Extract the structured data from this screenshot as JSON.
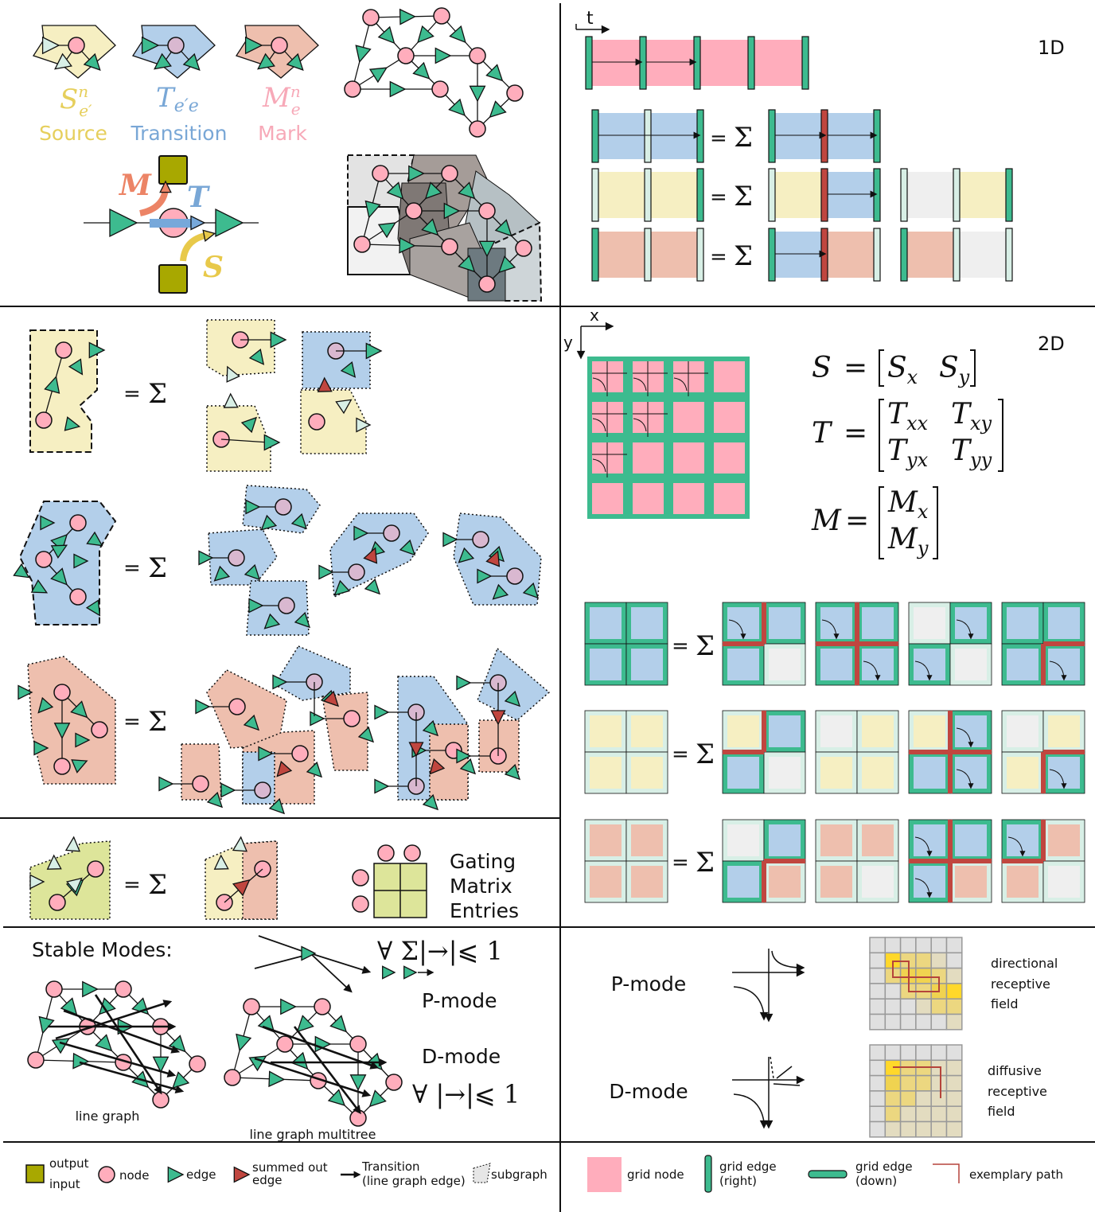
{
  "colors": {
    "node": "#ffadbc",
    "edge": "#3dbb8f",
    "source": "#f6efc2",
    "transition": "#b3cfea",
    "mark": "#eebfae",
    "io": "#a8a800",
    "summed_out": "#c0463f",
    "gating": "#dde59a",
    "path": "#b5443b",
    "source_text": "#e6cf5c",
    "transition_text": "#79a7d6",
    "mark_text": "#f7a9b8",
    "M_arrow": "#ec8466",
    "S_arrow": "#e8c94a"
  },
  "top_left": {
    "source": {
      "base": "S",
      "sup": "n",
      "sub": "e′",
      "label": "Source"
    },
    "transition": {
      "base": "T",
      "sub": "e′e",
      "label": "Transition"
    },
    "mark": {
      "base": "M",
      "sup": "n",
      "sub": "e",
      "label": "Mark"
    },
    "flow": {
      "M": "M",
      "T": "T",
      "S": "S"
    }
  },
  "one_d": {
    "title": "1D",
    "axis": "t",
    "eq": "=",
    "sum": "Σ"
  },
  "two_d": {
    "title": "2D",
    "axis_x": "x",
    "axis_y": "y",
    "eq": "=",
    "sum": "Σ",
    "S": {
      "lhs": "S",
      "a": "S",
      "a_sub": "x",
      "b": "S",
      "b_sub": "y"
    },
    "T": {
      "lhs": "T",
      "a": "T",
      "a_sub": "xx",
      "b": "T",
      "b_sub": "xy",
      "c": "T",
      "c_sub": "yx",
      "d": "T",
      "d_sub": "yy"
    },
    "M": {
      "lhs": "M",
      "a": "M",
      "a_sub": "x",
      "b": "M",
      "b_sub": "y"
    }
  },
  "left_rows": {
    "eq": "=",
    "sum": "Σ"
  },
  "gating": {
    "line1": "Gating",
    "line2": "Matrix",
    "line3": "Entries"
  },
  "stable": {
    "title": "Stable Modes:",
    "p_formula": "∀ Σ|→|⩽ 1",
    "p_label": "P-mode",
    "d_label": "D-mode",
    "d_formula": "∀ |→|⩽ 1",
    "line_graph": "line graph",
    "multitree": "line graph multitree"
  },
  "modes_right": {
    "p_label": "P-mode",
    "d_label": "D-mode",
    "directional": [
      "directional",
      "receptive",
      "field"
    ],
    "diffusive": [
      "diffusive",
      "receptive",
      "field"
    ]
  },
  "legend_left": {
    "output": "output",
    "input": "input",
    "node": "node",
    "edge": "edge",
    "summed_out_1": "summed out",
    "summed_out_2": "edge",
    "transition_1": "Transition",
    "transition_2": "(line graph edge)",
    "subgraph": "subgraph"
  },
  "legend_right": {
    "grid_node": "grid node",
    "grid_edge_right_1": "grid edge",
    "grid_edge_right_2": "(right)",
    "grid_edge_down_1": "grid edge",
    "grid_edge_down_2": "(down)",
    "exemplary_path": "exemplary path"
  }
}
